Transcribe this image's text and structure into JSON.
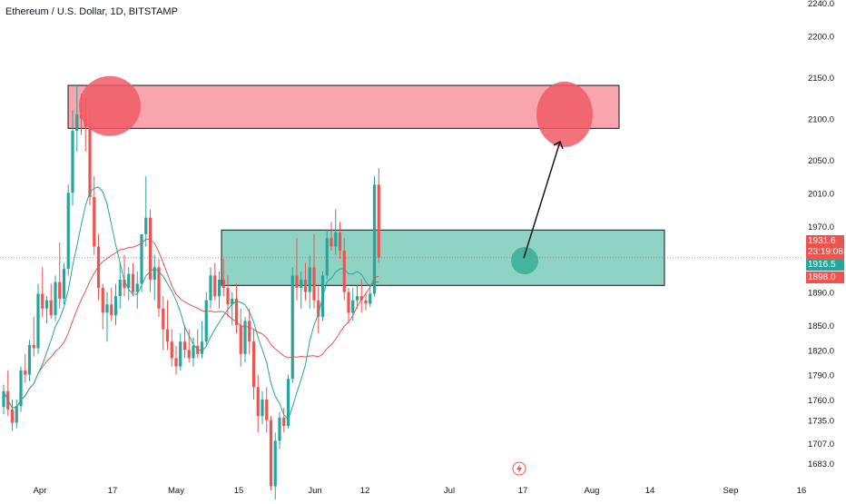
{
  "chart_data": {
    "type": "candlestick",
    "title": "Ethereum / U.S. Dollar, 1D, BITSTAMP",
    "y_ticks": [
      "2240.0",
      "2200.0",
      "2150.0",
      "2100.0",
      "2050.0",
      "2010.0",
      "1970.0",
      "1930.0",
      "1890.0",
      "1850.0",
      "1820.0",
      "1790.0",
      "1760.0",
      "1735.0",
      "1707.0",
      "1683.0"
    ],
    "x_ticks": [
      "Apr",
      "17",
      "May",
      "15",
      "Jun",
      "12",
      "Jul",
      "17",
      "Aug",
      "14",
      "Sep",
      "16"
    ],
    "price_labels": {
      "last": "1931.6",
      "countdown": "23:19:08",
      "ma_fast": "1916.5",
      "ma_slow": "1898.0"
    },
    "zones": [
      {
        "name": "resistance",
        "from": 2088,
        "to": 2140,
        "color": "#f8a5ad"
      },
      {
        "name": "support",
        "from": 1898,
        "to": 1965,
        "color": "#8fd3c5"
      }
    ],
    "annotation_circles": [
      {
        "name": "resistance-touch-circle",
        "price": 2115,
        "color": "#f05a66"
      },
      {
        "name": "target-circle",
        "price": 2105,
        "color": "#f05a66"
      },
      {
        "name": "retest-circle",
        "price": 1928,
        "color": "#3aae95"
      }
    ],
    "projection_arrow": {
      "from_price": 1931,
      "to_price": 2072
    },
    "series": [
      {
        "name": "",
        "color_up": "#26a69a",
        "color_down": "#ef5350",
        "candles": [
          [
            1751,
            1778,
            1742,
            1770
          ],
          [
            1770,
            1795,
            1740,
            1748
          ],
          [
            1748,
            1760,
            1722,
            1732
          ],
          [
            1732,
            1760,
            1725,
            1752
          ],
          [
            1752,
            1800,
            1745,
            1795
          ],
          [
            1795,
            1815,
            1780,
            1790
          ],
          [
            1790,
            1832,
            1782,
            1826
          ],
          [
            1826,
            1860,
            1812,
            1822
          ],
          [
            1822,
            1900,
            1815,
            1888
          ],
          [
            1888,
            1920,
            1860,
            1870
          ],
          [
            1870,
            1885,
            1852,
            1880
          ],
          [
            1880,
            1900,
            1858,
            1862
          ],
          [
            1862,
            1910,
            1855,
            1902
          ],
          [
            1902,
            1950,
            1870,
            1882
          ],
          [
            1882,
            1925,
            1875,
            1918
          ],
          [
            1918,
            2020,
            1910,
            2010
          ],
          [
            2010,
            2110,
            1995,
            2085
          ],
          [
            2085,
            2140,
            2060,
            2105
          ],
          [
            2105,
            2130,
            2080,
            2100
          ],
          [
            2100,
            2125,
            2060,
            2090
          ],
          [
            2090,
            2110,
            1995,
            2005
          ],
          [
            2005,
            2030,
            1935,
            1945
          ],
          [
            1945,
            1960,
            1880,
            1895
          ],
          [
            1895,
            1900,
            1845,
            1865
          ],
          [
            1865,
            1890,
            1830,
            1875
          ],
          [
            1875,
            1895,
            1855,
            1862
          ],
          [
            1862,
            1900,
            1850,
            1885
          ],
          [
            1885,
            1925,
            1870,
            1905
          ],
          [
            1905,
            1935,
            1885,
            1895
          ],
          [
            1895,
            1920,
            1880,
            1912
          ],
          [
            1912,
            1925,
            1885,
            1890
          ],
          [
            1890,
            1915,
            1870,
            1900
          ],
          [
            1900,
            1960,
            1890,
            1960
          ],
          [
            1960,
            2030,
            1945,
            1980
          ],
          [
            1980,
            1990,
            1890,
            1905
          ],
          [
            1905,
            1935,
            1880,
            1920
          ],
          [
            1920,
            1930,
            1860,
            1870
          ],
          [
            1870,
            1885,
            1820,
            1845
          ],
          [
            1845,
            1880,
            1820,
            1830
          ],
          [
            1830,
            1845,
            1800,
            1810
          ],
          [
            1810,
            1825,
            1790,
            1800
          ],
          [
            1800,
            1840,
            1795,
            1830
          ],
          [
            1830,
            1850,
            1810,
            1820
          ],
          [
            1820,
            1845,
            1805,
            1810
          ],
          [
            1810,
            1835,
            1800,
            1825
          ],
          [
            1825,
            1845,
            1810,
            1815
          ],
          [
            1815,
            1855,
            1810,
            1830
          ],
          [
            1830,
            1890,
            1825,
            1880
          ],
          [
            1880,
            1920,
            1870,
            1910
          ],
          [
            1910,
            1925,
            1880,
            1885
          ],
          [
            1885,
            1915,
            1870,
            1905
          ],
          [
            1905,
            1930,
            1885,
            1895
          ],
          [
            1895,
            1910,
            1860,
            1875
          ],
          [
            1875,
            1890,
            1850,
            1882
          ],
          [
            1882,
            1900,
            1840,
            1850
          ],
          [
            1850,
            1870,
            1800,
            1815
          ],
          [
            1815,
            1860,
            1805,
            1855
          ],
          [
            1855,
            1870,
            1815,
            1830
          ],
          [
            1830,
            1845,
            1760,
            1775
          ],
          [
            1775,
            1790,
            1720,
            1740
          ],
          [
            1740,
            1770,
            1730,
            1760
          ],
          [
            1760,
            1775,
            1720,
            1735
          ],
          [
            1735,
            1740,
            1650,
            1655
          ],
          [
            1655,
            1720,
            1630,
            1710
          ],
          [
            1710,
            1745,
            1700,
            1738
          ],
          [
            1738,
            1750,
            1720,
            1728
          ],
          [
            1728,
            1790,
            1725,
            1785
          ],
          [
            1785,
            1920,
            1780,
            1910
          ],
          [
            1910,
            1955,
            1880,
            1895
          ],
          [
            1895,
            1915,
            1870,
            1905
          ],
          [
            1905,
            1925,
            1880,
            1890
          ],
          [
            1890,
            1935,
            1870,
            1920
          ],
          [
            1920,
            1960,
            1870,
            1880
          ],
          [
            1880,
            1900,
            1840,
            1860
          ],
          [
            1860,
            1915,
            1855,
            1910
          ],
          [
            1910,
            1965,
            1905,
            1955
          ],
          [
            1955,
            1975,
            1940,
            1945
          ],
          [
            1945,
            1990,
            1935,
            1962
          ],
          [
            1962,
            1975,
            1930,
            1940
          ],
          [
            1940,
            1955,
            1880,
            1890
          ],
          [
            1890,
            1895,
            1852,
            1865
          ],
          [
            1865,
            1895,
            1855,
            1880
          ],
          [
            1880,
            1898,
            1870,
            1885
          ],
          [
            1885,
            1905,
            1865,
            1880
          ],
          [
            1880,
            1890,
            1868,
            1876
          ],
          [
            1876,
            1895,
            1872,
            1888
          ],
          [
            1888,
            2030,
            1885,
            2020
          ],
          [
            2020,
            2040,
            1925,
            1931.6
          ]
        ]
      },
      {
        "name": "",
        "color": "#26a69a"
      },
      {
        "name": "",
        "color": "#ef5350"
      }
    ],
    "grid": false,
    "legend": "none"
  }
}
